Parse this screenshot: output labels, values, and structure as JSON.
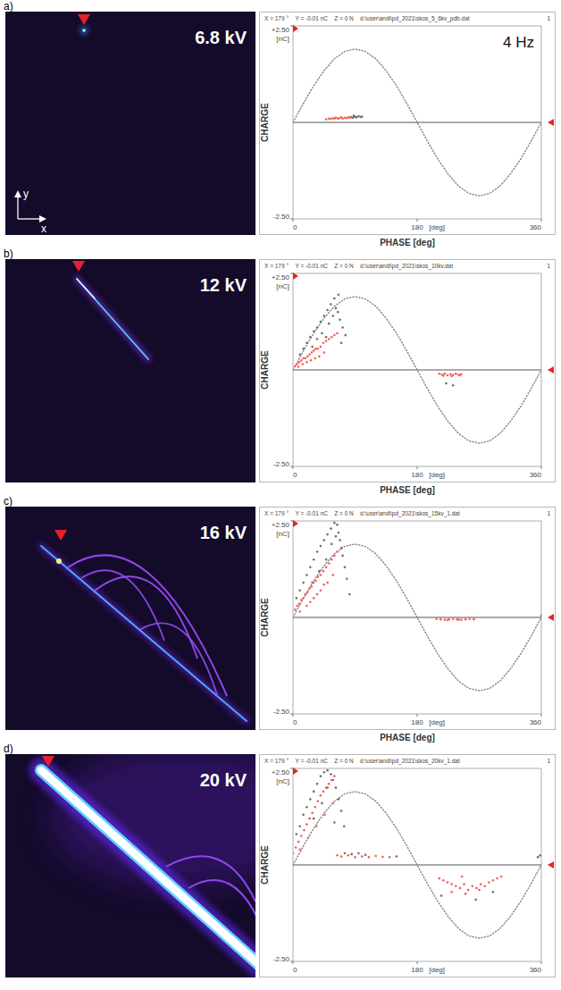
{
  "figure": {
    "panels": [
      {
        "label": "a)",
        "voltage": "6.8 kV",
        "axes": [
          "y",
          "x"
        ]
      },
      {
        "label": "b)",
        "voltage": "12 kV"
      },
      {
        "label": "c)",
        "voltage": "16 kV"
      },
      {
        "label": "d)",
        "voltage": "20 kV"
      }
    ]
  },
  "chart_data": [
    {
      "type": "scatter",
      "ylabel": "CHARGE",
      "xlabel": "PHASE [deg]",
      "y_unit": "[nC]",
      "x_unit": "[deg]",
      "header": [
        "X = 179 °",
        "Y = -0.01 nC",
        "Z = 0 N",
        "d:\\user\\andi\\pd_2021\\skos_5_6kv_pdb.dat",
        "1"
      ],
      "annotations": [
        "4 Hz"
      ],
      "xlim": [
        0,
        360
      ],
      "xticks": [
        0,
        180,
        360
      ],
      "ylim": [
        -2.5,
        2.5
      ],
      "yticks": [
        {
          "value": -2.5,
          "label": "-2.50"
        },
        {
          "value": 2.5,
          "label": "+2.50"
        }
      ],
      "grid": false,
      "series": [
        {
          "type": "line",
          "line_style": "dotted",
          "color": "#7a7a7a",
          "x": [
            0,
            15,
            30,
            45,
            60,
            75,
            90,
            105,
            120,
            135,
            150,
            165,
            180,
            195,
            210,
            225,
            240,
            255,
            270,
            285,
            300,
            315,
            330,
            345,
            360
          ],
          "values": [
            0,
            0.49,
            0.95,
            1.34,
            1.65,
            1.84,
            1.9,
            1.84,
            1.65,
            1.34,
            0.95,
            0.49,
            0,
            -0.49,
            -0.95,
            -1.34,
            -1.65,
            -1.84,
            -1.9,
            -1.84,
            -1.65,
            -1.34,
            -0.95,
            -0.49,
            0
          ]
        },
        {
          "type": "scatter",
          "marker": "dot",
          "color": "#6e6e6e",
          "x": [
            84,
            87,
            90,
            92,
            95,
            98,
            100,
            88
          ],
          "values": [
            0.14,
            0.12,
            0.15,
            0.13,
            0.16,
            0.14,
            0.15,
            0.17
          ]
        },
        {
          "type": "scatter",
          "marker": "dot",
          "color": "#f0605a",
          "x": [
            48,
            52,
            55,
            58,
            60,
            62,
            65,
            67,
            70,
            72,
            75,
            78,
            80,
            83
          ],
          "values": [
            0.08,
            0.1,
            0.09,
            0.11,
            0.1,
            0.12,
            0.1,
            0.11,
            0.13,
            0.1,
            0.12,
            0.11,
            0.13,
            0.12
          ]
        }
      ]
    },
    {
      "type": "scatter",
      "ylabel": "CHARGE",
      "xlabel": "PHASE [deg]",
      "y_unit": "[nC]",
      "x_unit": "[deg]",
      "header": [
        "X = 179 °",
        "Y = -0.01 nC",
        "Z = 0 N",
        "d:\\user\\andi\\pd_2021\\skos_10kv.dat",
        "1"
      ],
      "xlim": [
        0,
        360
      ],
      "xticks": [
        0,
        180,
        360
      ],
      "ylim": [
        -2.5,
        2.5
      ],
      "yticks": [
        {
          "value": -2.5,
          "label": "-2.50"
        },
        {
          "value": 2.5,
          "label": "+2.50"
        }
      ],
      "grid": false,
      "series": [
        {
          "type": "line",
          "line_style": "dotted",
          "color": "#7a7a7a",
          "x": [
            0,
            15,
            30,
            45,
            60,
            75,
            90,
            105,
            120,
            135,
            150,
            165,
            180,
            195,
            210,
            225,
            240,
            255,
            270,
            285,
            300,
            315,
            330,
            345,
            360
          ],
          "values": [
            0,
            0.49,
            0.95,
            1.34,
            1.65,
            1.84,
            1.9,
            1.84,
            1.65,
            1.34,
            0.95,
            0.49,
            0,
            -0.49,
            -0.95,
            -1.34,
            -1.65,
            -1.84,
            -1.9,
            -1.84,
            -1.65,
            -1.34,
            -0.95,
            -0.49,
            0
          ]
        },
        {
          "type": "scatter",
          "marker": "dot",
          "color": "#6e6e6e",
          "x": [
            10,
            15,
            20,
            25,
            30,
            35,
            40,
            45,
            50,
            55,
            60,
            62,
            65,
            68,
            72,
            76,
            42,
            52,
            58,
            48,
            35,
            28,
            66,
            70,
            222,
            232
          ],
          "values": [
            0.4,
            0.55,
            0.7,
            0.85,
            1.0,
            1.1,
            1.25,
            1.4,
            1.55,
            1.7,
            1.85,
            1.6,
            1.5,
            1.3,
            1.1,
            0.9,
            0.95,
            1.2,
            1.4,
            0.85,
            0.8,
            0.6,
            1.95,
            0.7,
            -0.35,
            -0.4
          ]
        },
        {
          "type": "scatter",
          "marker": "dot",
          "color": "#f0605a",
          "x": [
            3,
            6,
            9,
            12,
            15,
            18,
            21,
            24,
            27,
            30,
            33,
            36,
            40,
            44,
            48,
            52,
            56,
            60,
            64,
            8,
            14,
            20,
            26,
            32,
            38,
            45,
            212,
            216,
            220,
            224,
            228,
            232,
            236,
            240,
            244,
            218,
            230,
            242
          ],
          "values": [
            0.1,
            0.15,
            0.2,
            0.25,
            0.3,
            0.3,
            0.35,
            0.4,
            0.45,
            0.5,
            0.55,
            0.55,
            0.6,
            0.7,
            0.75,
            0.8,
            0.85,
            0.9,
            0.95,
            0.08,
            0.15,
            0.2,
            0.25,
            0.3,
            0.35,
            0.45,
            -0.1,
            -0.12,
            -0.1,
            -0.14,
            -0.11,
            -0.13,
            -0.1,
            -0.12,
            -0.11,
            -0.15,
            -0.16,
            -0.14
          ]
        }
      ]
    },
    {
      "type": "scatter",
      "ylabel": "CHARGE",
      "xlabel": "PHASE [deg]",
      "y_unit": "[nC]",
      "x_unit": "[deg]",
      "header": [
        "X = 179 °",
        "Y = -0.01 nC",
        "Z = 0 N",
        "d:\\user\\andi\\pd_2021\\skos_15kv_1.dat",
        "1"
      ],
      "xlim": [
        0,
        360
      ],
      "xticks": [
        0,
        180,
        360
      ],
      "ylim": [
        -2.5,
        2.5
      ],
      "yticks": [
        {
          "value": -2.5,
          "label": "-2.50"
        },
        {
          "value": 2.5,
          "label": "+2.50"
        }
      ],
      "grid": false,
      "series": [
        {
          "type": "line",
          "line_style": "dotted",
          "color": "#7a7a7a",
          "x": [
            0,
            15,
            30,
            45,
            60,
            75,
            90,
            105,
            120,
            135,
            150,
            165,
            180,
            195,
            210,
            225,
            240,
            255,
            270,
            285,
            300,
            315,
            330,
            345,
            360
          ],
          "values": [
            0,
            0.49,
            0.95,
            1.34,
            1.65,
            1.84,
            1.9,
            1.84,
            1.65,
            1.34,
            0.95,
            0.49,
            0,
            -0.49,
            -0.95,
            -1.34,
            -1.65,
            -1.84,
            -1.9,
            -1.84,
            -1.65,
            -1.34,
            -0.95,
            -0.49,
            0
          ]
        },
        {
          "type": "scatter",
          "marker": "dot",
          "color": "#6e6e6e",
          "x": [
            5,
            10,
            15,
            20,
            25,
            30,
            35,
            40,
            45,
            50,
            55,
            60,
            64,
            66,
            68,
            70,
            72,
            75,
            78,
            82,
            62,
            56,
            48,
            38,
            28,
            18,
            360
          ],
          "values": [
            0.5,
            0.7,
            0.9,
            1.1,
            1.3,
            1.5,
            1.7,
            1.85,
            2.0,
            2.15,
            2.3,
            2.45,
            2.4,
            2.2,
            2.0,
            1.8,
            1.6,
            1.3,
            1.0,
            0.6,
            2.1,
            1.9,
            1.5,
            1.2,
            0.9,
            0.6,
            0.05
          ]
        },
        {
          "type": "scatter",
          "marker": "dot",
          "color": "#f0605a",
          "x": [
            3,
            6,
            9,
            12,
            15,
            18,
            21,
            24,
            27,
            30,
            33,
            36,
            40,
            44,
            48,
            52,
            56,
            60,
            64,
            10,
            20,
            30,
            40,
            50,
            58,
            25,
            35,
            45,
            208,
            214,
            220,
            226,
            232,
            238,
            244,
            250,
            256,
            262,
            224,
            240
          ],
          "values": [
            0.2,
            0.3,
            0.35,
            0.45,
            0.5,
            0.6,
            0.65,
            0.75,
            0.8,
            0.9,
            0.95,
            1.05,
            1.1,
            1.2,
            1.3,
            1.4,
            1.5,
            1.6,
            1.7,
            0.15,
            0.3,
            0.5,
            0.7,
            0.9,
            1.1,
            0.4,
            0.6,
            0.85,
            -0.04,
            -0.05,
            -0.06,
            -0.05,
            -0.04,
            -0.05,
            -0.06,
            -0.05,
            -0.04,
            -0.05,
            -0.07,
            -0.06
          ]
        }
      ]
    },
    {
      "type": "scatter",
      "ylabel": "CHARGE",
      "y_unit": "[nC]",
      "x_unit": "[deg]",
      "header": [
        "X = 179 °",
        "Y = -0.01 nC",
        "Z = 0 N",
        "d:\\user\\andi\\pd_2021\\skos_20kv_1.dat",
        "1"
      ],
      "xlim": [
        0,
        360
      ],
      "xticks": [
        0,
        180,
        360
      ],
      "ylim": [
        -2.5,
        2.5
      ],
      "yticks": [
        {
          "value": -2.5,
          "label": "-2.50"
        },
        {
          "value": 2.5,
          "label": "+2.50"
        }
      ],
      "grid": false,
      "series": [
        {
          "type": "line",
          "line_style": "dotted",
          "color": "#7a7a7a",
          "x": [
            0,
            15,
            30,
            45,
            60,
            75,
            90,
            105,
            120,
            135,
            150,
            165,
            180,
            195,
            210,
            225,
            240,
            255,
            270,
            285,
            300,
            315,
            330,
            345,
            360
          ],
          "values": [
            0,
            0.49,
            0.95,
            1.34,
            1.65,
            1.84,
            1.9,
            1.84,
            1.65,
            1.34,
            0.95,
            0.49,
            0,
            -0.49,
            -0.95,
            -1.34,
            -1.65,
            -1.84,
            -1.9,
            -1.84,
            -1.65,
            -1.34,
            -0.95,
            -0.49,
            0
          ]
        },
        {
          "type": "scatter",
          "marker": "dot",
          "color": "#6e6e6e",
          "x": [
            5,
            10,
            15,
            20,
            25,
            30,
            35,
            40,
            45,
            50,
            55,
            58,
            62,
            66,
            70,
            74,
            30,
            42,
            50,
            60,
            75,
            85,
            95,
            105,
            150,
            215,
            265,
            290,
            358,
            355
          ],
          "values": [
            0.8,
            1.0,
            1.3,
            1.5,
            1.7,
            1.9,
            2.1,
            2.3,
            2.4,
            2.45,
            2.35,
            2.2,
            2.0,
            1.7,
            1.4,
            1.0,
            1.2,
            1.6,
            2.0,
            1.1,
            0.3,
            0.28,
            0.3,
            0.26,
            0.22,
            -0.8,
            -0.9,
            -0.7,
            0.25,
            0.2
          ]
        },
        {
          "type": "scatter",
          "marker": "dot",
          "color": "#f0605a",
          "x": [
            0,
            4,
            8,
            12,
            16,
            20,
            24,
            28,
            32,
            36,
            40,
            44,
            48,
            52,
            56,
            60,
            10,
            22,
            34,
            46,
            58,
            64,
            70,
            80,
            90,
            100,
            110,
            120,
            130,
            140,
            212,
            218,
            224,
            230,
            236,
            242,
            248,
            254,
            260,
            266,
            272,
            278,
            284,
            290,
            296,
            302,
            230,
            250,
            270,
            245
          ],
          "values": [
            0.3,
            0.45,
            0.6,
            0.75,
            0.9,
            1.05,
            1.2,
            1.35,
            1.5,
            1.65,
            1.8,
            1.9,
            2.0,
            2.1,
            2.2,
            2.3,
            0.4,
            0.7,
            1.0,
            1.3,
            1.6,
            0.25,
            0.22,
            0.25,
            0.2,
            0.22,
            0.2,
            0.23,
            0.21,
            0.2,
            -0.35,
            -0.4,
            -0.45,
            -0.5,
            -0.55,
            -0.6,
            -0.5,
            -0.65,
            -0.55,
            -0.6,
            -0.5,
            -0.55,
            -0.45,
            -0.4,
            -0.35,
            -0.3,
            -0.7,
            -0.75,
            -0.65,
            -0.3
          ]
        }
      ]
    }
  ]
}
